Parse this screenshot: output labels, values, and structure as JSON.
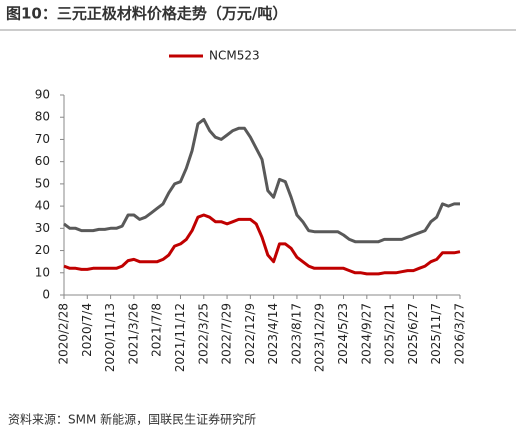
{
  "chart_data": {
    "type": "line",
    "title": "图10：三元正极材料价格走势（万元/吨）",
    "source": "资料来源：SMM 新能源，国联民生证券研究所",
    "categories": [
      "2020/2/28",
      null,
      null,
      null,
      "2020/7/4",
      null,
      null,
      null,
      "2020/11/13",
      null,
      null,
      null,
      "2021/3/26",
      null,
      null,
      null,
      "2021/7/8",
      null,
      null,
      null,
      "2021/11/12",
      null,
      null,
      null,
      "2022/3/25",
      null,
      null,
      null,
      "2022/7/29",
      null,
      null,
      null,
      "2022/12/9",
      null,
      null,
      null,
      "2023/4/14",
      null,
      null,
      null,
      "2023/8/17",
      null,
      null,
      null,
      "2023/12/29",
      null,
      null,
      null,
      "2024/5/23",
      null,
      null,
      null,
      "2024/9/27",
      null,
      null,
      null,
      "2025/2/21",
      null,
      null,
      null,
      "2025/6/27",
      null,
      null,
      null,
      "2025/11/7",
      null,
      null,
      null,
      "2026/3/27"
    ],
    "series": [
      {
        "color": "#595959",
        "values": [
          32,
          30,
          30,
          29,
          29,
          29,
          29.5,
          29.5,
          30,
          30,
          31,
          36,
          36,
          34,
          35,
          37,
          39,
          41,
          46,
          50,
          51,
          57,
          65,
          77,
          79,
          74,
          71,
          70,
          72,
          74,
          75,
          75,
          71,
          66,
          61,
          47,
          44,
          52,
          51,
          44,
          36,
          33,
          29,
          28.5,
          28.5,
          28.5,
          28.5,
          28.5,
          27,
          25,
          24,
          24,
          24,
          24,
          24,
          25,
          25,
          25,
          25,
          26,
          27,
          28,
          29,
          33,
          35,
          41,
          40,
          41,
          41
        ]
      },
      {
        "name": "NCM523",
        "color": "#c00000",
        "values": [
          13,
          12,
          12,
          11.5,
          11.5,
          12,
          12,
          12,
          12,
          12,
          13,
          15.5,
          16,
          15,
          15,
          15,
          15,
          16,
          18,
          22,
          23,
          25,
          29,
          35,
          36,
          35,
          33,
          33,
          32,
          33,
          34,
          34,
          34,
          32,
          26,
          18,
          15,
          23,
          23,
          21,
          17,
          15,
          13,
          12,
          12,
          12,
          12,
          12,
          12,
          11,
          10,
          10,
          9.5,
          9.5,
          9.5,
          10,
          10,
          10,
          10.5,
          11,
          11,
          12,
          13,
          15,
          16,
          19,
          19,
          19,
          19.5
        ]
      }
    ],
    "ylim": [
      0,
      90
    ],
    "yticks": [
      0,
      10,
      20,
      30,
      40,
      50,
      60,
      70,
      80,
      90
    ],
    "grid": false,
    "legend": "top"
  }
}
